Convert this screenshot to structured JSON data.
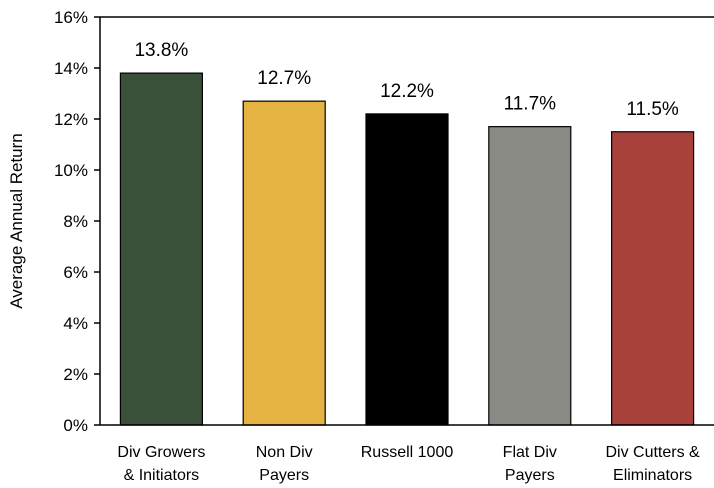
{
  "chart_data": {
    "type": "bar",
    "title": "",
    "xlabel": "",
    "ylabel": "Average Annual Return",
    "ylim": [
      0,
      16
    ],
    "yticks": [
      0,
      2,
      4,
      6,
      8,
      10,
      12,
      14,
      16
    ],
    "ytick_labels": [
      "0%",
      "2%",
      "4%",
      "6%",
      "8%",
      "10%",
      "12%",
      "14%",
      "16%"
    ],
    "grid": false,
    "categories": [
      [
        "Div Growers",
        "& Initiators"
      ],
      [
        "Non Div",
        "Payers"
      ],
      [
        "Russell 1000"
      ],
      [
        "Flat Div",
        "Payers"
      ],
      [
        "Div Cutters &",
        "Eliminators"
      ]
    ],
    "values": [
      13.8,
      12.7,
      12.2,
      11.7,
      11.5
    ],
    "data_labels": [
      "13.8%",
      "12.7%",
      "12.2%",
      "11.7%",
      "11.5%"
    ],
    "colors": [
      "#3a5038",
      "#e4b341",
      "#000000",
      "#8a8a84",
      "#a8403b"
    ]
  }
}
